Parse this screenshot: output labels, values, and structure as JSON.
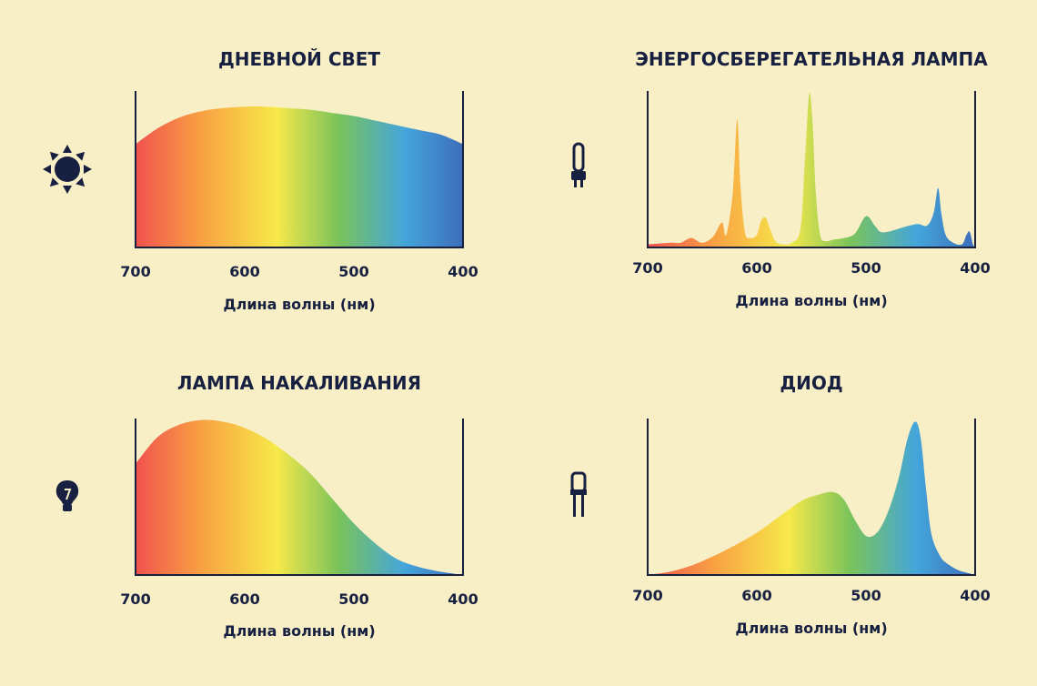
{
  "chart_data": [
    {
      "id": "daylight",
      "type": "area",
      "title": "ДНЕВНОЙ СВЕТ",
      "xlabel": "Длина волны (нм)",
      "ylabel": "",
      "xlim": [
        700,
        400
      ],
      "ylim": [
        0,
        1
      ],
      "xticks": [
        "700",
        "600",
        "500",
        "400"
      ],
      "icon": "sun-icon",
      "x": [
        700,
        680,
        660,
        640,
        620,
        600,
        580,
        560,
        540,
        520,
        500,
        480,
        460,
        440,
        420,
        400
      ],
      "values": [
        0.66,
        0.76,
        0.83,
        0.87,
        0.89,
        0.9,
        0.9,
        0.89,
        0.88,
        0.86,
        0.84,
        0.81,
        0.78,
        0.75,
        0.72,
        0.66
      ]
    },
    {
      "id": "energy-saving",
      "type": "area",
      "title": "ЭНЕРГОСБЕРЕГАТЕЛЬНАЯ ЛАМПА",
      "xlabel": "Длина волны (нм)",
      "ylabel": "",
      "xlim": [
        700,
        400
      ],
      "ylim": [
        0,
        1
      ],
      "xticks": [
        "700",
        "600",
        "500",
        "400"
      ],
      "icon": "cfl-lamp-icon",
      "x": [
        700,
        680,
        670,
        660,
        650,
        640,
        632,
        628,
        622,
        618,
        615,
        611,
        606,
        600,
        596,
        592,
        588,
        583,
        576,
        568,
        560,
        556,
        552,
        549,
        546,
        542,
        537,
        530,
        520,
        510,
        500,
        492,
        487,
        480,
        470,
        460,
        452,
        444,
        438,
        434,
        431,
        427,
        420,
        412,
        408,
        405,
        402,
        400
      ],
      "values": [
        0.02,
        0.03,
        0.03,
        0.06,
        0.03,
        0.07,
        0.16,
        0.08,
        0.35,
        0.82,
        0.4,
        0.1,
        0.06,
        0.08,
        0.17,
        0.19,
        0.12,
        0.04,
        0.02,
        0.03,
        0.12,
        0.55,
        0.98,
        0.8,
        0.35,
        0.08,
        0.04,
        0.05,
        0.06,
        0.09,
        0.2,
        0.14,
        0.1,
        0.1,
        0.12,
        0.14,
        0.15,
        0.14,
        0.22,
        0.38,
        0.22,
        0.08,
        0.03,
        0.02,
        0.08,
        0.1,
        0.02,
        0.0
      ]
    },
    {
      "id": "incandescent",
      "type": "area",
      "title": "ЛАМПА НАКАЛИВАНИЯ",
      "xlabel": "Длина волны (нм)",
      "ylabel": "",
      "xlim": [
        700,
        400
      ],
      "ylim": [
        0,
        1
      ],
      "xticks": [
        "700",
        "600",
        "500",
        "400"
      ],
      "icon": "light-bulb-icon",
      "x": [
        700,
        680,
        660,
        640,
        620,
        600,
        580,
        560,
        540,
        520,
        500,
        480,
        460,
        440,
        420,
        410,
        400
      ],
      "values": [
        0.71,
        0.88,
        0.96,
        0.99,
        0.98,
        0.94,
        0.87,
        0.77,
        0.65,
        0.49,
        0.33,
        0.2,
        0.1,
        0.05,
        0.02,
        0.01,
        0.0
      ]
    },
    {
      "id": "diode",
      "type": "area",
      "title": "ДИОД",
      "xlabel": "Длина волны (нм)",
      "ylabel": "",
      "xlim": [
        700,
        400
      ],
      "ylim": [
        0,
        1
      ],
      "xticks": [
        "700",
        "600",
        "500",
        "400"
      ],
      "icon": "led-icon",
      "x": [
        700,
        680,
        660,
        640,
        620,
        600,
        580,
        560,
        545,
        530,
        520,
        510,
        500,
        490,
        480,
        470,
        462,
        455,
        450,
        445,
        440,
        432,
        425,
        415,
        405,
        400
      ],
      "values": [
        0.0,
        0.02,
        0.06,
        0.12,
        0.19,
        0.27,
        0.37,
        0.47,
        0.51,
        0.53,
        0.48,
        0.35,
        0.25,
        0.27,
        0.4,
        0.62,
        0.87,
        0.98,
        0.88,
        0.55,
        0.26,
        0.12,
        0.07,
        0.03,
        0.01,
        0.0
      ]
    }
  ]
}
